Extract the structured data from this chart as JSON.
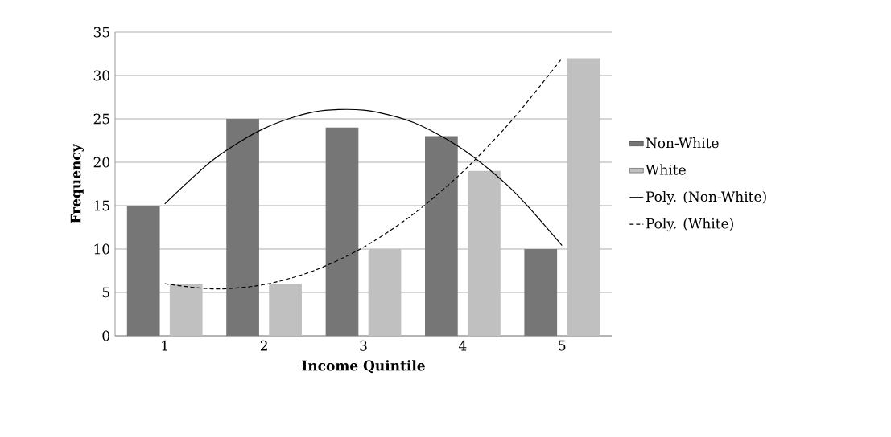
{
  "chart_data": {
    "type": "bar",
    "xlabel": "Income Quintile",
    "ylabel": "Frequency",
    "x": [
      1,
      2,
      3,
      4,
      5
    ],
    "xlim": [
      0.5,
      5.5
    ],
    "xticks": [
      1,
      2,
      3,
      4,
      5
    ],
    "ylim": [
      0,
      35
    ],
    "yticks": [
      0,
      5,
      10,
      15,
      20,
      25,
      30,
      35
    ],
    "grid": "y",
    "legend": "right",
    "marker": "none",
    "series": [
      {
        "name": "Non-White",
        "color": "#767676",
        "values": [
          15,
          25,
          24,
          23,
          10
        ]
      },
      {
        "name": "White",
        "color": "#c0c0c0",
        "values": [
          6,
          6,
          10,
          19,
          32
        ]
      },
      {
        "name": "Poly. (Non-White)",
        "type": "line",
        "color": "#000000",
        "line_style": "solid",
        "x": [
          1,
          1.5,
          2,
          2.5,
          3,
          3.5,
          4,
          4.5,
          5
        ],
        "values": [
          15.2,
          20.4,
          23.9,
          25.8,
          26.0,
          24.6,
          21.5,
          16.8,
          10.4
        ]
      },
      {
        "name": "Poly. (White)",
        "type": "line",
        "color": "#000000",
        "line_style": "dashed",
        "x": [
          1,
          1.5,
          2,
          2.5,
          3,
          3.5,
          4,
          4.5,
          5
        ],
        "values": [
          6.0,
          5.4,
          5.9,
          7.5,
          10.2,
          14.0,
          18.9,
          24.9,
          32.0
        ]
      }
    ]
  }
}
